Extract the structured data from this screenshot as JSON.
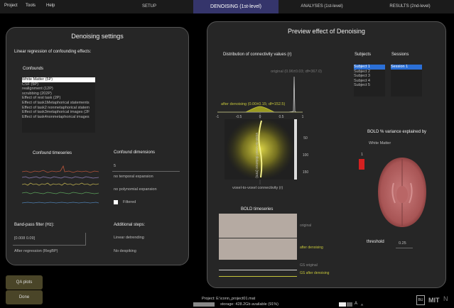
{
  "menu": [
    "Project",
    "Tools",
    "Help"
  ],
  "tabs": [
    "SETUP",
    "DENOISING (1st-level)",
    "ANALYSES (1st-level)",
    "RESULTS (2nd-level)"
  ],
  "left": {
    "title": "Denoising settings",
    "linreg_label": "Linear regression of confounding effects:",
    "confounds_label": "Confounds",
    "confounds": [
      "White Matter (5P)",
      "CSF (5P)",
      "realignment (12P)",
      "scrubbing (202P)",
      "Effect of rest task (2P)",
      "Effect of task1Metaphorical statements",
      "Effect of task2 nonmetaphorical statem",
      "Effect of task3metaphorical images (2F",
      "Effect of task4nonmetaphorical images"
    ],
    "timeseries_label": "Confound timeseries",
    "dimensions_label": "Confound dimensions",
    "dimensions_value": "5",
    "no_temporal": "no temporal expansion",
    "no_polynomial": "no polynomial expansion",
    "filtered": "Filtered",
    "bandpass_label": "Band-pass filter (Hz):",
    "bandpass_value": "[0.008 0.09]",
    "after_regression": "After regression (RegBP)",
    "additional_label": "Additional steps:",
    "linear_detrending": "Linear detrending",
    "no_despiking": "No despiking"
  },
  "buttons": {
    "qa": "QA plots",
    "done": "Done"
  },
  "right": {
    "title": "Preview effect of Denoising",
    "dist_label": "Distribution of connectivity values (r)",
    "original_stats": "original (0.96±0.03; df=367.0)",
    "after_stats": "after denoising (0.00±0.15; df=152.5)",
    "x_ticks": [
      "-1",
      "-0.5",
      "0",
      "0.5",
      "1"
    ],
    "y_ticks": [
      "50",
      "100",
      "150"
    ],
    "y_axis_label": "voxel-to-voxel distance (mm)",
    "x_axis_label": "voxel-to-voxel connectivity (r)",
    "subjects_label": "Subjects",
    "subjects": [
      "Subject 1",
      "Subject 2",
      "Subject 3",
      "Subject 4",
      "Subject 5"
    ],
    "sessions_label": "Sessions",
    "sessions": [
      "Session 1"
    ],
    "bold_var_label": "BOLD % variance explained by",
    "bold_var_source": "White Matter",
    "colorbar_value": "1",
    "bold_ts_label": "BOLD timeseries",
    "ts_original": "original",
    "ts_after": "after denoising",
    "gs_original": "GS original",
    "gs_after": "GS after denoising",
    "threshold_label": "threshold",
    "threshold_value": "0.25"
  },
  "footer": {
    "project": "Project: E:\\conn_project01.mat",
    "storage": "storage: 428.2Gb available (91%)",
    "logo_bu": "BU",
    "logo_mit": "MIT"
  }
}
